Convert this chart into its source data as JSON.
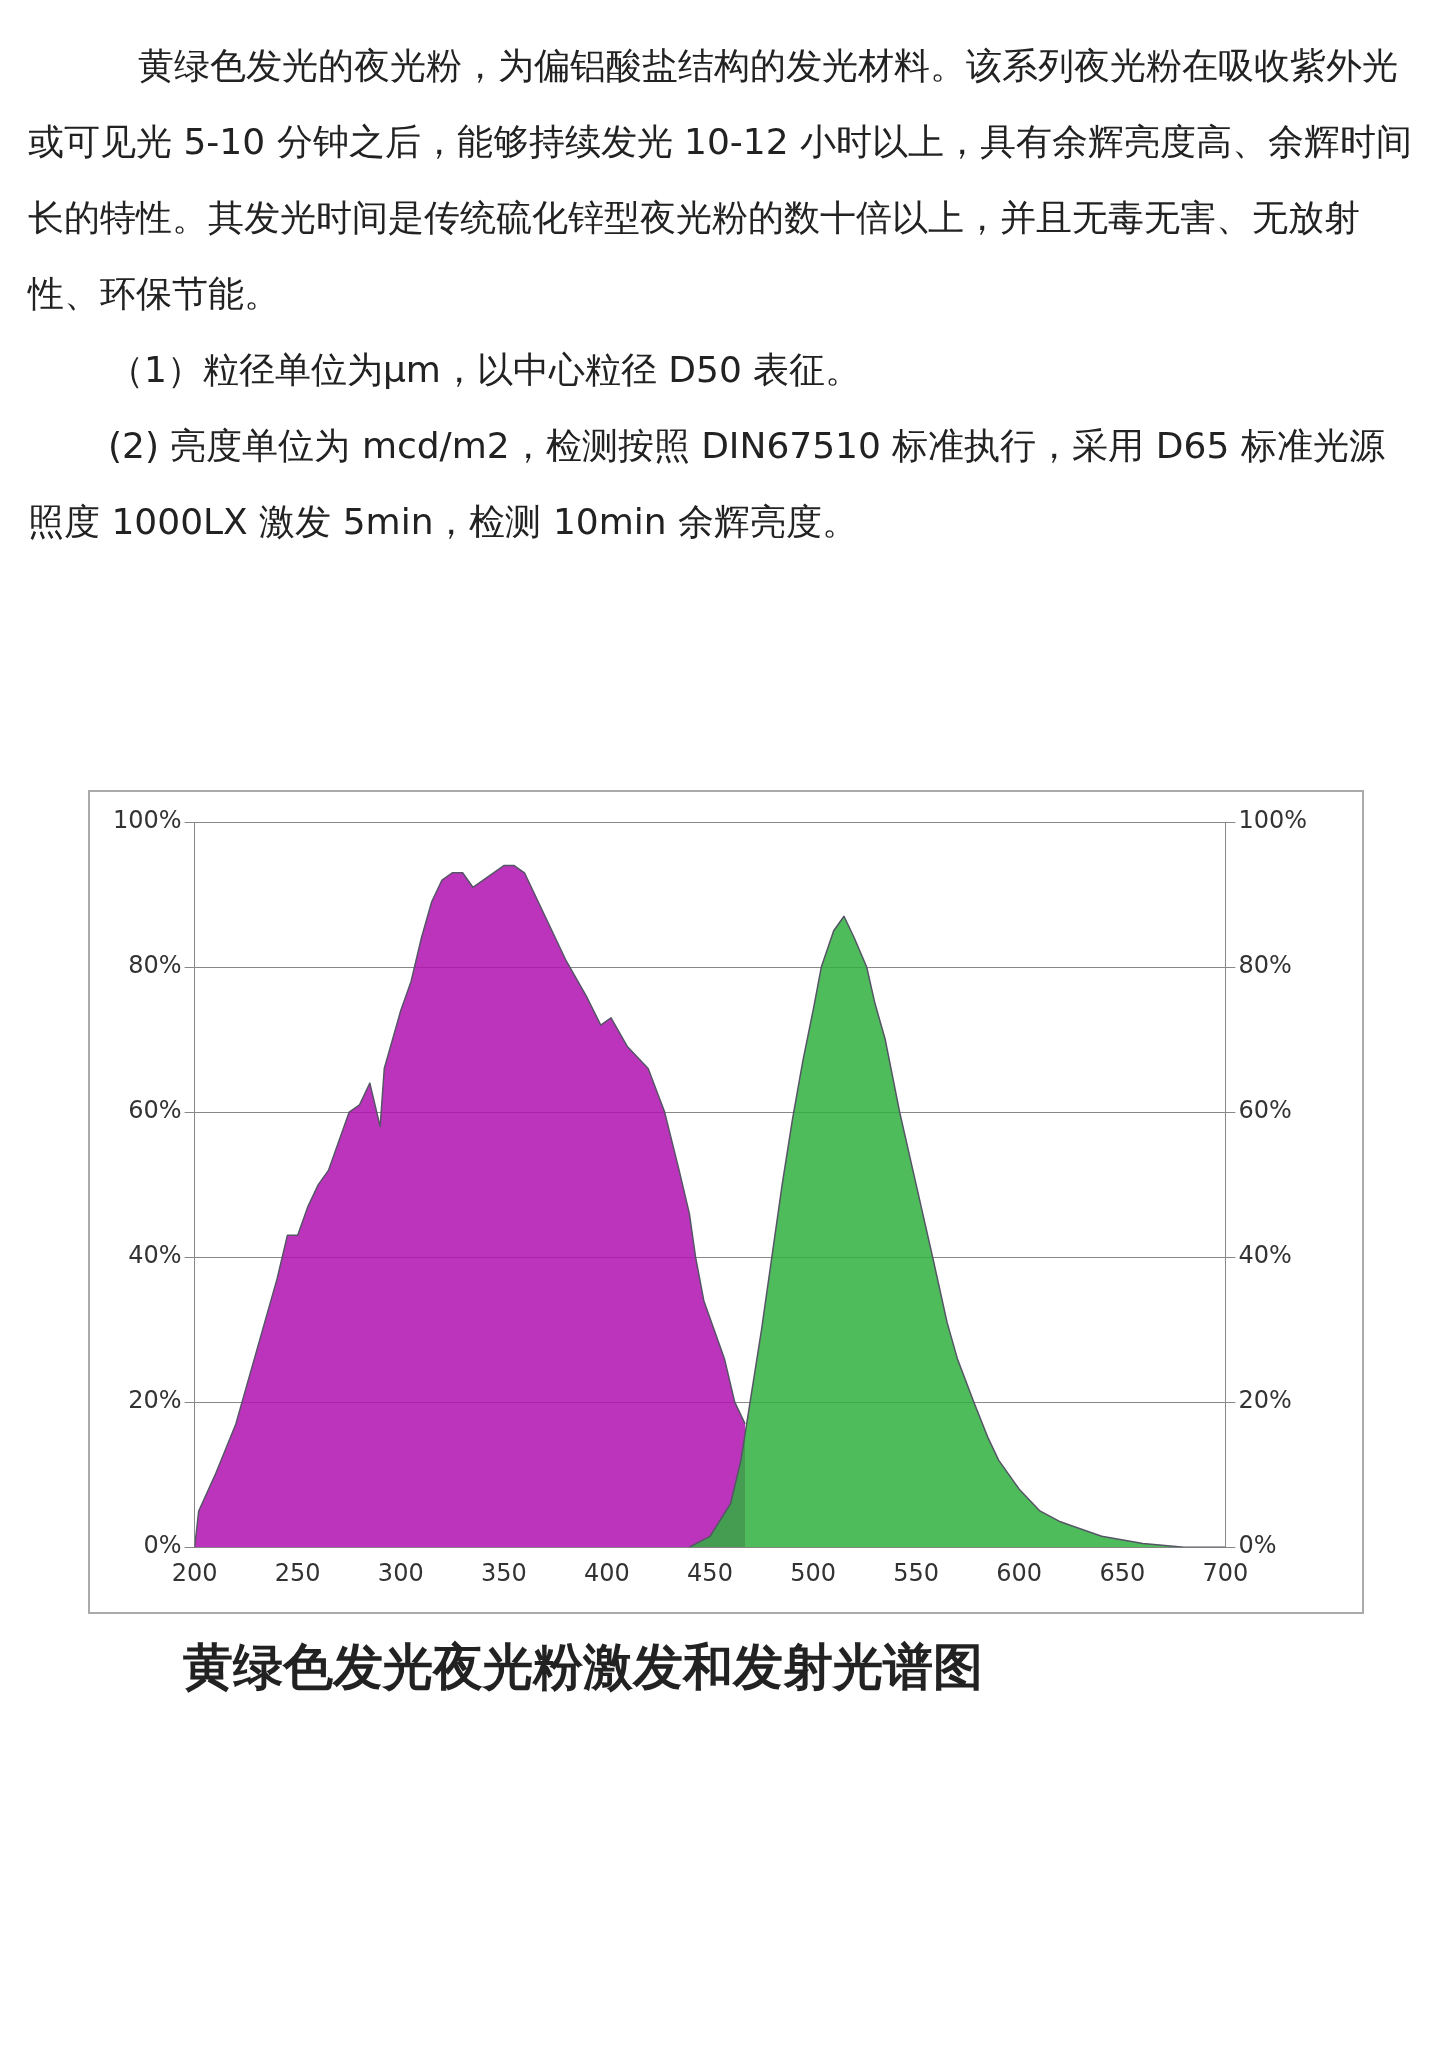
{
  "chart_data": {
    "type": "area",
    "title": "黄绿色发光夜光粉激发和发射光谱图",
    "annotations": [
      "黄绿色发光的夜光粉，为偏铝酸盐结构的发光材料。该系列夜光粉在吸收紫外光或可见光 5-10 分钟之后，能够持续发光 10-12 小时以上，具有余辉亮度高、余辉时间长的特性。其发光时间是传统硫化锌型夜光粉的数十倍以上，并且无毒无害、无放射性、环保节能。",
      "（1）粒径单位为μm，以中心粒径 D50 表征。",
      "(2) 亮度单位为 mcd/m2，检测按照 DIN67510 标准执行，采用 D65 标准光源照度 1000LX 激发 5min，检测 10min 余辉亮度。"
    ],
    "series": [
      {
        "color": "#b010b0",
        "x": [
          200,
          202,
          210,
          220,
          230,
          240,
          245,
          250,
          255,
          260,
          265,
          270,
          275,
          280,
          285,
          290,
          292,
          300,
          305,
          310,
          315,
          320,
          325,
          330,
          335,
          340,
          345,
          350,
          355,
          360,
          370,
          380,
          390,
          397,
          402,
          410,
          420,
          428,
          435,
          440,
          443,
          447,
          452,
          457,
          462,
          467
        ],
        "values": [
          0,
          5,
          10,
          17,
          27,
          37,
          43,
          43,
          47,
          50,
          52,
          56,
          60,
          61,
          64,
          58,
          66,
          74,
          78,
          84,
          89,
          92,
          93,
          93,
          91,
          92,
          93,
          94,
          94,
          93,
          87,
          81,
          76,
          72,
          73,
          69,
          66,
          60,
          52,
          46,
          40,
          34,
          30,
          26,
          20,
          17
        ]
      },
      {
        "color": "#30b040",
        "x": [
          440,
          450,
          460,
          465,
          470,
          475,
          480,
          485,
          490,
          495,
          500,
          504,
          510,
          515,
          520,
          526,
          530,
          535,
          542,
          550,
          558,
          565,
          570,
          578,
          585,
          590,
          600,
          610,
          620,
          640,
          660,
          680,
          700
        ],
        "values": [
          0,
          1.5,
          6,
          12,
          21,
          30,
          40,
          50,
          59,
          67,
          74,
          80,
          85,
          87,
          84,
          80,
          75,
          70,
          60,
          50,
          40,
          31,
          26,
          20,
          15,
          12,
          8,
          5,
          3.5,
          1.5,
          0.5,
          0,
          0
        ]
      }
    ],
    "xlim": [
      200,
      700
    ],
    "xticks": [
      200,
      250,
      300,
      350,
      400,
      450,
      500,
      550,
      600,
      650,
      700
    ],
    "ylim": [
      0,
      100
    ],
    "yticks": [
      {
        "value": 0,
        "label": "0%"
      },
      {
        "value": 20,
        "label": "20%"
      },
      {
        "value": 40,
        "label": "40%"
      },
      {
        "value": 60,
        "label": "60%"
      },
      {
        "value": 80,
        "label": "80%"
      },
      {
        "value": 100,
        "label": "100%"
      }
    ],
    "y2lim": [
      0,
      100
    ],
    "y2ticks": [
      {
        "value": 0,
        "label": "0%"
      },
      {
        "value": 20,
        "label": "20%"
      },
      {
        "value": 40,
        "label": "40%"
      },
      {
        "value": 60,
        "label": "60%"
      },
      {
        "value": 80,
        "label": "80%"
      },
      {
        "value": 100,
        "label": "100%"
      }
    ],
    "grid": "y",
    "legend": false,
    "marker": "none",
    "line_style": "solid"
  }
}
